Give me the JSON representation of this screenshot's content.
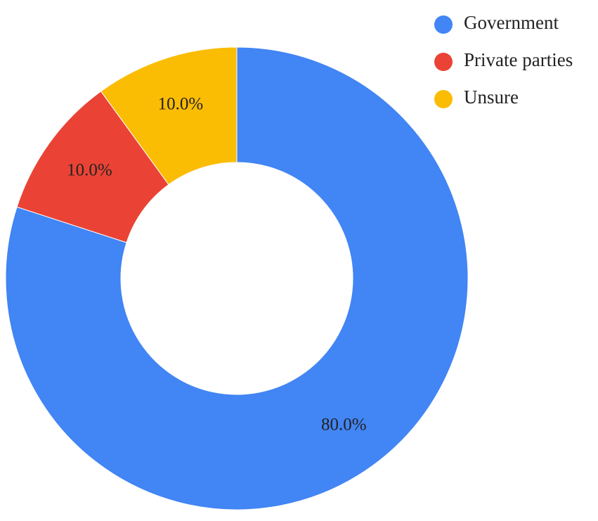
{
  "chart_data": {
    "type": "pie",
    "variant": "donut",
    "title": "",
    "categories": [
      "Government",
      "Private parties",
      "Unsure"
    ],
    "values": [
      80.0,
      10.0,
      10.0
    ],
    "labels": [
      "80.0%",
      "10.0%",
      "10.0%"
    ],
    "colors": [
      "#4285f4",
      "#ea4335",
      "#fbbc04"
    ],
    "legend": {
      "position": "top-right",
      "entries": [
        "Government",
        "Private parties",
        "Unsure"
      ]
    }
  }
}
